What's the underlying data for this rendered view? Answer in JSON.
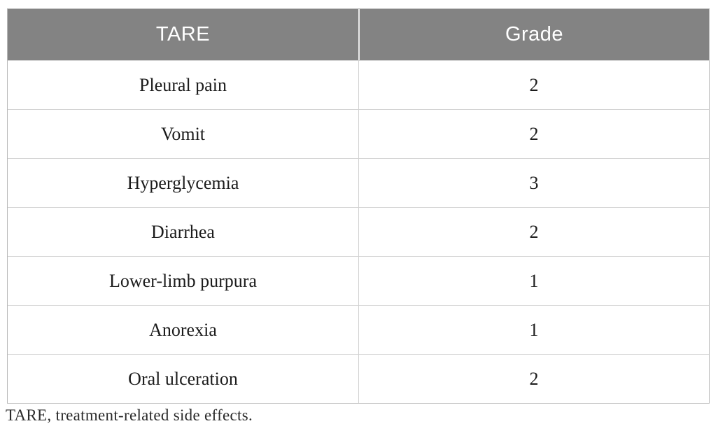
{
  "table": {
    "columns": [
      {
        "key": "tare",
        "label": "TARE"
      },
      {
        "key": "grade",
        "label": "Grade"
      }
    ],
    "rows": [
      {
        "tare": "Pleural pain",
        "grade": "2"
      },
      {
        "tare": "Vomit",
        "grade": "2"
      },
      {
        "tare": "Hyperglycemia",
        "grade": "3"
      },
      {
        "tare": "Diarrhea",
        "grade": "2"
      },
      {
        "tare": "Lower-limb purpura",
        "grade": "1"
      },
      {
        "tare": "Anorexia",
        "grade": "1"
      },
      {
        "tare": "Oral ulceration",
        "grade": "2"
      }
    ]
  },
  "footnote": "TARE, treatment-related side effects.",
  "colors": {
    "header_bg": "#838383",
    "header_text": "#ffffff",
    "body_text": "#1c1c1c",
    "row_border": "#d2d2d2",
    "outer_border": "#b9b9b9"
  },
  "chart_data": {
    "type": "table",
    "title": "",
    "columns": [
      "TARE",
      "Grade"
    ],
    "rows": [
      [
        "Pleural pain",
        2
      ],
      [
        "Vomit",
        2
      ],
      [
        "Hyperglycemia",
        3
      ],
      [
        "Diarrhea",
        2
      ],
      [
        "Lower-limb purpura",
        1
      ],
      [
        "Anorexia",
        1
      ],
      [
        "Oral ulceration",
        2
      ]
    ],
    "footnote": "TARE, treatment-related side effects."
  }
}
